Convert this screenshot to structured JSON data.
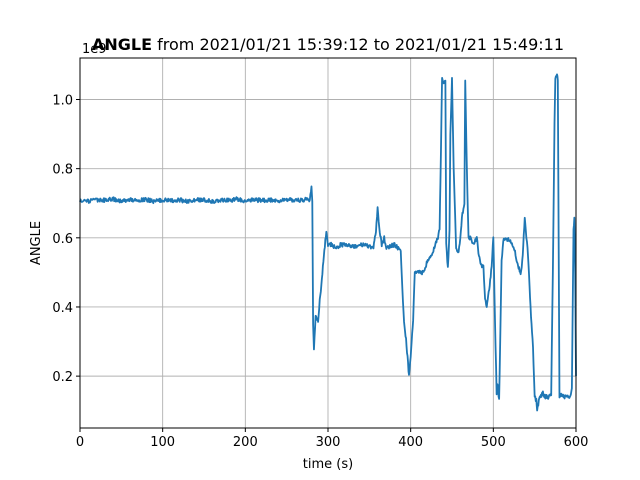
{
  "chart_data": {
    "type": "line",
    "title_bold": "ANGLE",
    "title_rest": " from 2021/01/21 15:39:12 to 2021/01/21 15:49:11",
    "xlabel": "time (s)",
    "ylabel": "ANGLE",
    "y_offset_label": "1e9",
    "xlim": [
      0,
      600
    ],
    "ylim": [
      0.05,
      1.12
    ],
    "xticks": [
      0,
      100,
      200,
      300,
      400,
      500,
      600
    ],
    "yticks": [
      0.2,
      0.4,
      0.6,
      0.8,
      1.0
    ],
    "ytick_labels": [
      "0.2",
      "0.4",
      "0.6",
      "0.8",
      "1.0"
    ],
    "grid": true,
    "series_color": "#1f77b4",
    "series": [
      {
        "x": [
          0,
          10,
          20,
          30,
          40,
          50,
          60,
          70,
          80,
          90,
          100,
          110,
          120,
          130,
          140,
          150,
          160,
          170,
          180,
          190,
          200,
          210,
          220,
          230,
          240,
          250,
          260,
          270,
          278,
          280,
          281,
          282,
          283,
          285,
          288,
          290,
          292,
          295,
          298,
          300,
          305,
          310,
          315,
          320,
          330,
          340,
          350,
          355,
          358,
          360,
          362,
          365,
          368,
          370,
          375,
          380,
          385,
          388,
          390,
          392,
          395,
          398,
          400,
          403,
          405,
          410,
          415,
          420,
          425,
          430,
          433,
          435,
          436,
          438,
          440,
          442,
          443,
          445,
          447,
          448,
          450,
          452,
          455,
          458,
          460,
          462,
          465,
          466,
          468,
          470,
          472,
          475,
          480,
          482,
          485,
          488,
          490,
          492,
          495,
          498,
          500,
          502,
          504,
          505,
          507,
          510,
          512,
          515,
          520,
          525,
          530,
          533,
          535,
          538,
          540,
          542,
          545,
          548,
          550,
          552,
          553,
          555,
          557,
          560,
          563,
          565,
          567,
          570,
          572,
          574,
          575,
          577,
          578,
          580,
          582,
          585,
          588,
          590,
          592,
          595,
          597,
          598,
          599,
          600
        ],
        "y": [
          0.71,
          0.705,
          0.71,
          0.708,
          0.712,
          0.705,
          0.71,
          0.708,
          0.71,
          0.705,
          0.71,
          0.708,
          0.71,
          0.705,
          0.71,
          0.71,
          0.705,
          0.71,
          0.708,
          0.712,
          0.705,
          0.71,
          0.708,
          0.71,
          0.705,
          0.71,
          0.708,
          0.71,
          0.71,
          0.75,
          0.71,
          0.35,
          0.28,
          0.37,
          0.36,
          0.42,
          0.46,
          0.55,
          0.62,
          0.58,
          0.58,
          0.57,
          0.58,
          0.58,
          0.575,
          0.58,
          0.575,
          0.57,
          0.62,
          0.69,
          0.63,
          0.58,
          0.6,
          0.57,
          0.575,
          0.58,
          0.57,
          0.56,
          0.45,
          0.36,
          0.29,
          0.2,
          0.26,
          0.36,
          0.5,
          0.5,
          0.5,
          0.53,
          0.55,
          0.58,
          0.6,
          0.63,
          0.76,
          1.06,
          1.05,
          1.06,
          0.58,
          0.51,
          0.62,
          0.9,
          1.06,
          0.8,
          0.57,
          0.56,
          0.6,
          0.66,
          0.7,
          1.05,
          0.8,
          0.6,
          0.6,
          0.58,
          0.6,
          0.56,
          0.52,
          0.52,
          0.42,
          0.4,
          0.45,
          0.52,
          0.6,
          0.36,
          0.15,
          0.18,
          0.13,
          0.53,
          0.59,
          0.6,
          0.59,
          0.57,
          0.52,
          0.5,
          0.53,
          0.66,
          0.6,
          0.55,
          0.4,
          0.28,
          0.14,
          0.13,
          0.1,
          0.13,
          0.14,
          0.15,
          0.14,
          0.14,
          0.14,
          0.15,
          0.5,
          0.93,
          1.06,
          1.07,
          1.06,
          0.14,
          0.15,
          0.14,
          0.14,
          0.14,
          0.14,
          0.16,
          0.62,
          0.66,
          0.5,
          0.2
        ]
      }
    ]
  }
}
